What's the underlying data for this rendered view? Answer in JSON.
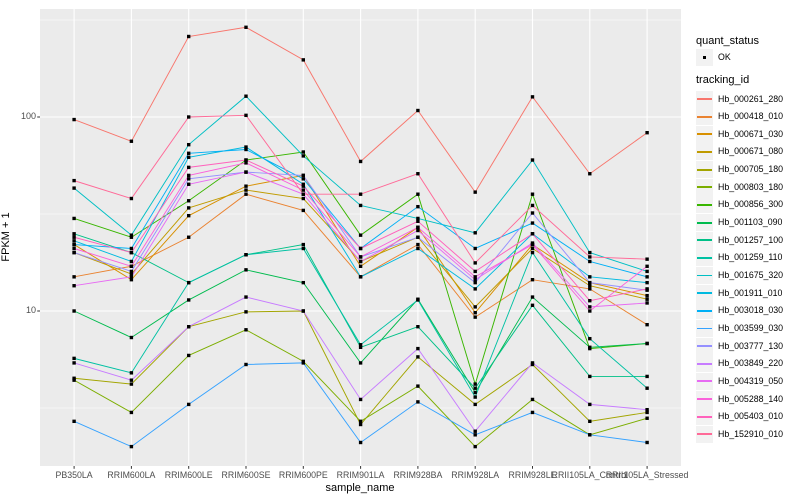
{
  "style": {
    "panel_bg": "#EBEBEB",
    "grid_color": "#FFFFFF",
    "key_bg": "#F2F2F2",
    "tick_color": "#333333",
    "tick_label_color": "#4D4D4D",
    "marker_color": "#000000"
  },
  "chart_data": {
    "type": "line",
    "xlabel": "sample_name",
    "ylabel": "FPKM + 1",
    "yscale": "log10",
    "ylim": [
      1.6,
      380
    ],
    "grid": true,
    "legend_position": "right",
    "ytick_labels": [
      "100",
      "10"
    ],
    "ytick_values": [
      100,
      10
    ],
    "yminor_values": [
      316.23,
      31.62,
      3.162
    ],
    "categories": [
      "PB350LA",
      "RRIM600LA",
      "RRIM600LE",
      "RRIM600SE",
      "RRIM600PE",
      "RRIM901LA",
      "RRIM928BA",
      "RRIM928LA",
      "RRIM928LE",
      "RRII105LA_Control",
      "RRII105LA_Stressed"
    ],
    "series": [
      {
        "name": "Hb_000261_280",
        "color": "#F8766D",
        "values": [
          97,
          75,
          260,
          290,
          197,
          59,
          108,
          41,
          127,
          51,
          83
        ]
      },
      {
        "name": "Hb_000418_010",
        "color": "#EA8331",
        "values": [
          15,
          17,
          24,
          40,
          33,
          15,
          22,
          9.3,
          14.5,
          13,
          8.5
        ]
      },
      {
        "name": "Hb_000671_030",
        "color": "#D89000",
        "values": [
          22,
          14.5,
          31,
          44,
          50,
          17,
          27,
          9.8,
          22,
          14,
          12
        ]
      },
      {
        "name": "Hb_000671_080",
        "color": "#C09B00",
        "values": [
          20,
          15.5,
          34,
          42,
          38,
          18,
          24,
          10.5,
          21,
          13.5,
          11.5
        ]
      },
      {
        "name": "Hb_000705_180",
        "color": "#A3A500",
        "values": [
          4.5,
          4.2,
          8.3,
          9.9,
          10,
          2.6,
          5.8,
          3.3,
          5.3,
          2.7,
          3
        ]
      },
      {
        "name": "Hb_000803_180",
        "color": "#7CAE00",
        "values": [
          4.4,
          3,
          5.9,
          8,
          5.5,
          2.7,
          4.1,
          2,
          3.5,
          2.3,
          2.8
        ]
      },
      {
        "name": "Hb_000856_300",
        "color": "#39B600",
        "values": [
          30,
          24,
          37,
          60,
          66,
          24.6,
          40,
          4.2,
          40,
          6.4,
          6.8
        ]
      },
      {
        "name": "Hb_001103_090",
        "color": "#00BB4E",
        "values": [
          10,
          7.3,
          11.4,
          16.3,
          14,
          5.4,
          11.5,
          3.8,
          11.8,
          6.5,
          6.8
        ]
      },
      {
        "name": "Hb_001257_100",
        "color": "#00C087",
        "values": [
          25,
          20,
          14,
          19.5,
          22,
          6.5,
          8.3,
          4,
          10.7,
          4.6,
          4.6
        ]
      },
      {
        "name": "Hb_001259_110",
        "color": "#00C1A3",
        "values": [
          5.7,
          4.8,
          14,
          19.5,
          21,
          6.7,
          11.4,
          3.6,
          20,
          7.2,
          4
        ]
      },
      {
        "name": "Hb_001675_320",
        "color": "#00BFC4",
        "values": [
          43,
          24.6,
          72,
          128,
          63,
          35,
          30,
          25.3,
          60,
          20,
          16
        ]
      },
      {
        "name": "Hb_001911_010",
        "color": "#00BAE0",
        "values": [
          23,
          18,
          62,
          70,
          45,
          15,
          21,
          13,
          25,
          15,
          14
        ]
      },
      {
        "name": "Hb_003018_030",
        "color": "#00B0F6",
        "values": [
          22,
          21,
          65,
          68,
          48,
          21,
          34.5,
          21,
          28.4,
          18,
          15
        ]
      },
      {
        "name": "Hb_003599_030",
        "color": "#35A2FF",
        "values": [
          2.7,
          2,
          3.3,
          5.3,
          5.4,
          2.1,
          3.4,
          2.3,
          3,
          2.3,
          2.1
        ]
      },
      {
        "name": "Hb_003777_130",
        "color": "#9590FF",
        "values": [
          20,
          16,
          48,
          52,
          50,
          19,
          24,
          14,
          32,
          14,
          12.8
        ]
      },
      {
        "name": "Hb_003849_220",
        "color": "#C77CFF",
        "values": [
          5.4,
          4.4,
          8.3,
          11.8,
          10,
          3.5,
          6.4,
          2.4,
          5.4,
          3.3,
          3.1
        ]
      },
      {
        "name": "Hb_004319_050",
        "color": "#E76BF3",
        "values": [
          13.5,
          15,
          45,
          52,
          40,
          18,
          26,
          14.5,
          22.4,
          10.5,
          11
        ]
      },
      {
        "name": "Hb_005288_140",
        "color": "#FA62DB",
        "values": [
          21,
          17,
          50,
          58,
          42,
          19,
          27,
          15,
          22,
          10,
          17
        ]
      },
      {
        "name": "Hb_005403_010",
        "color": "#FF62BC",
        "values": [
          24,
          20,
          55,
          60,
          44,
          21,
          29,
          16,
          25,
          11.3,
          13
        ]
      },
      {
        "name": "Hb_152910_010",
        "color": "#FF6A98",
        "values": [
          47,
          38,
          100,
          102,
          40,
          40,
          51,
          17.7,
          35,
          19,
          18.5
        ]
      }
    ],
    "marker": {
      "shape": "square",
      "size": 3.4
    }
  },
  "legend": {
    "quant_title": "quant_status",
    "quant_items": [
      {
        "label": "OK"
      }
    ],
    "tracking_title": "tracking_id"
  }
}
